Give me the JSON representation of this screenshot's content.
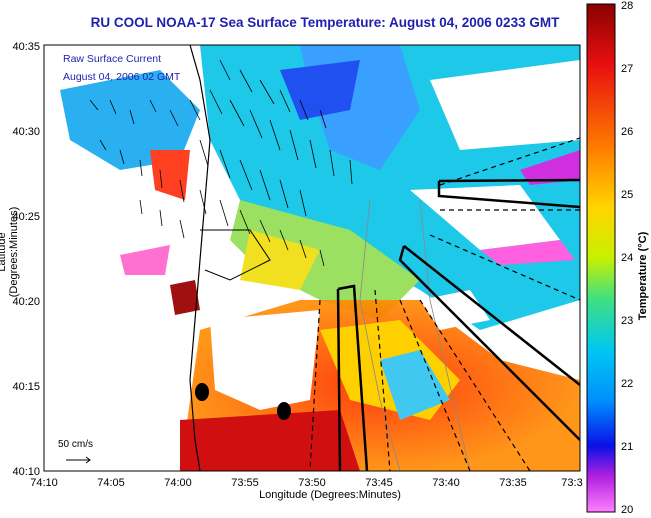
{
  "title": "RU COOL  NOAA-17  Sea Surface Temperature:  August 04, 2006 0233 GMT",
  "legend": {
    "line1": "Raw Surface Current",
    "line2": "August 04, 2006 02 GMT"
  },
  "scale_label": "50 cm/s",
  "axes": {
    "xlabel": "Longitude (Degrees:Minutes)",
    "ylabel": "Latitude (Degrees:Minutes)",
    "xticks": [
      "74:10",
      "74:05",
      "74:00",
      "73:55",
      "73:50",
      "73:45",
      "73:40",
      "73:35",
      "73:3"
    ],
    "yticks": [
      "40:35",
      "40:30",
      "40:25",
      "40:20",
      "40:15",
      "40:10"
    ]
  },
  "colorbar": {
    "label": "Temperature (°C)",
    "ticks": [
      "28",
      "27",
      "26",
      "25",
      "24",
      "23",
      "22",
      "21",
      "20"
    ],
    "min": 20,
    "max": 28
  }
}
